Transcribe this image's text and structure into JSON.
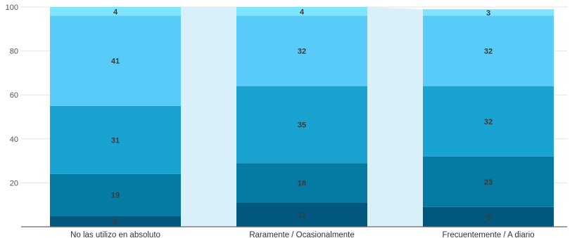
{
  "chart_data": {
    "type": "bar",
    "stacked": true,
    "categories": [
      "No las utilizo en absoluto",
      "Raramente / Ocasionalmente",
      "Frecuentemente / A diario"
    ],
    "series": [
      {
        "values": [
          5,
          11,
          9
        ],
        "color": "#01577d"
      },
      {
        "values": [
          19,
          18,
          23
        ],
        "color": "#057aa3"
      },
      {
        "values": [
          31,
          35,
          32
        ],
        "color": "#19a3d1"
      },
      {
        "values": [
          41,
          32,
          32
        ],
        "color": "#58cbf8"
      },
      {
        "values": [
          4,
          4,
          3
        ],
        "color": "#7fe4fe"
      }
    ],
    "ylim": [
      0,
      100
    ],
    "yticks": [
      20,
      40,
      60,
      80,
      100
    ],
    "grid": true,
    "legend": "none",
    "connector_color": "#d9eff9"
  }
}
